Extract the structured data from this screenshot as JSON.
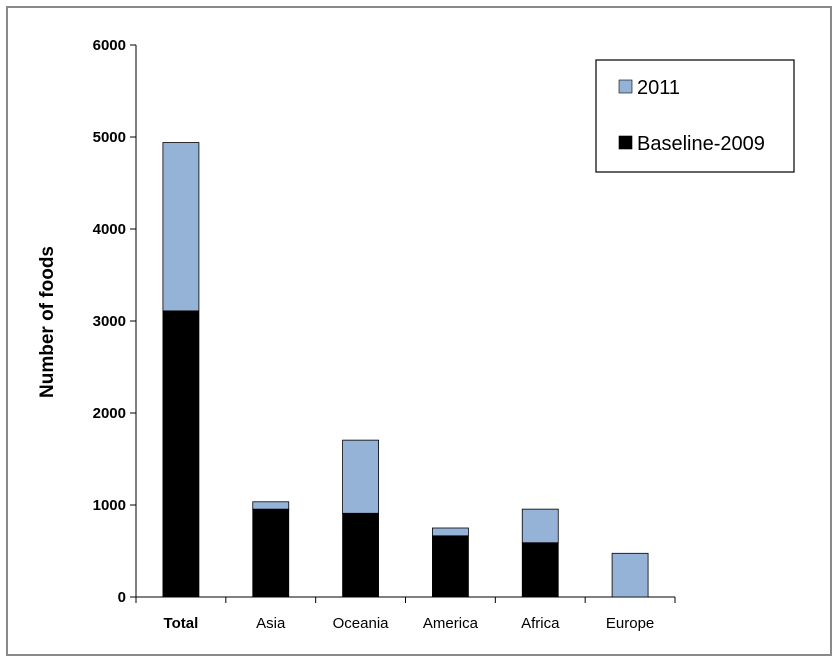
{
  "chart_data": {
    "type": "bar",
    "stacked": true,
    "categories": [
      "Total",
      "Asia",
      "Oceania",
      "America",
      "Africa",
      "Europe"
    ],
    "series": [
      {
        "name": "Baseline-2009",
        "color": "#000000",
        "values": [
          3110,
          955,
          910,
          665,
          590,
          0
        ]
      },
      {
        "name": "2011",
        "color": "#95b3d7",
        "values": [
          1830,
          80,
          795,
          85,
          365,
          475
        ]
      }
    ],
    "title": "",
    "xlabel": "",
    "ylabel": "Number of foods",
    "ylim": [
      0,
      6000
    ],
    "yticks": [
      "0",
      "1000",
      "2000",
      "3000",
      "4000",
      "5000",
      "6000"
    ],
    "grid": false,
    "legend_position": "top-right",
    "legend_order": [
      "2011",
      "Baseline-2009"
    ]
  }
}
